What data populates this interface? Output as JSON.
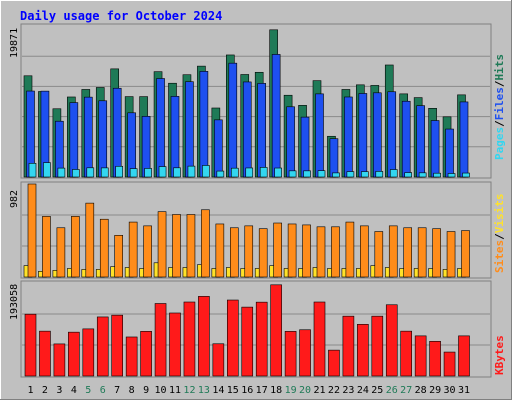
{
  "title": "Daily usage for October 2024",
  "colors": {
    "frame": "#c0c0c0",
    "title": "#0000ff",
    "hits": "#1f7a57",
    "files": "#1e50f0",
    "pages": "#33d6f0",
    "visits": "#ff8c1a",
    "sites": "#ffe22a",
    "kbytes": "#ff1a1a",
    "weekend_label": "#1f7a57",
    "weekday_label": "#000000"
  },
  "legend": {
    "pages": "Pages",
    "files": "Files",
    "hits": "Hits",
    "sites": "Sites",
    "visits": "Visits",
    "kbytes": "KBytes",
    "slash": "/"
  },
  "chart_data": [
    {
      "type": "bar",
      "panel": "hits-files-pages",
      "ymax_label": "19871",
      "ylim": [
        0,
        19871
      ],
      "categories": [
        "1",
        "2",
        "3",
        "4",
        "5",
        "6",
        "7",
        "8",
        "9",
        "10",
        "11",
        "12",
        "13",
        "14",
        "15",
        "16",
        "17",
        "18",
        "19",
        "20",
        "21",
        "22",
        "23",
        "24",
        "25",
        "26",
        "27",
        "28",
        "29",
        "30",
        "31"
      ],
      "weekend_days": [
        5,
        6,
        12,
        13,
        19,
        20,
        26,
        27
      ],
      "series": [
        {
          "name": "Hits",
          "values": [
            13320,
            11250,
            8980,
            10530,
            11520,
            11780,
            14230,
            10580,
            10580,
            13860,
            12340,
            13460,
            14590,
            9080,
            16060,
            13490,
            13780,
            19370,
            10760,
            9430,
            12680,
            5360,
            11520,
            12130,
            12050,
            14740,
            10940,
            10450,
            9040,
            7920,
            10810
          ]
        },
        {
          "name": "Files",
          "values": [
            11310,
            11300,
            7340,
            9790,
            10510,
            10030,
            11680,
            8450,
            7980,
            12960,
            10610,
            12540,
            13900,
            7520,
            14980,
            12510,
            12320,
            16130,
            9240,
            7880,
            10940,
            5040,
            10530,
            10990,
            11080,
            11220,
            9970,
            9390,
            7430,
            6310,
            9880
          ]
        },
        {
          "name": "Pages",
          "values": [
            1800,
            1890,
            1170,
            990,
            1210,
            1200,
            1410,
            1100,
            1130,
            1370,
            1210,
            1430,
            1520,
            780,
            1160,
            1190,
            1260,
            1180,
            810,
            810,
            830,
            540,
            710,
            710,
            740,
            980,
            580,
            550,
            500,
            460,
            520
          ]
        }
      ]
    },
    {
      "type": "bar",
      "panel": "visits-sites",
      "ymax_label": "982",
      "ylim": [
        0,
        982
      ],
      "categories": [
        "1",
        "2",
        "3",
        "4",
        "5",
        "6",
        "7",
        "8",
        "9",
        "10",
        "11",
        "12",
        "13",
        "14",
        "15",
        "16",
        "17",
        "18",
        "19",
        "20",
        "21",
        "22",
        "23",
        "24",
        "25",
        "26",
        "27",
        "28",
        "29",
        "30",
        "31"
      ],
      "series": [
        {
          "name": "Visits",
          "values": [
            982,
            640,
            520,
            640,
            780,
            610,
            440,
            580,
            540,
            690,
            660,
            660,
            710,
            560,
            520,
            540,
            510,
            570,
            560,
            550,
            530,
            530,
            580,
            540,
            480,
            540,
            520,
            520,
            510,
            480,
            490
          ]
        },
        {
          "name": "Sites",
          "values": [
            120,
            60,
            70,
            90,
            80,
            80,
            110,
            100,
            90,
            150,
            100,
            100,
            130,
            90,
            100,
            90,
            90,
            120,
            90,
            90,
            100,
            90,
            90,
            90,
            120,
            100,
            90,
            90,
            90,
            80,
            90
          ]
        }
      ]
    },
    {
      "type": "bar",
      "panel": "kbytes",
      "ymax_label": "193058",
      "ylim": [
        0,
        193058
      ],
      "categories": [
        "1",
        "2",
        "3",
        "4",
        "5",
        "6",
        "7",
        "8",
        "9",
        "10",
        "11",
        "12",
        "13",
        "14",
        "15",
        "16",
        "17",
        "18",
        "19",
        "20",
        "21",
        "22",
        "23",
        "24",
        "25",
        "26",
        "27",
        "28",
        "29",
        "30",
        "31"
      ],
      "series": [
        {
          "name": "KBytes",
          "values": [
            128300,
            93100,
            66600,
            91000,
            97800,
            122600,
            126300,
            81000,
            92700,
            150500,
            130800,
            153600,
            165300,
            66900,
            157700,
            143000,
            153300,
            189300,
            92700,
            96000,
            153600,
            53700,
            124200,
            107300,
            124200,
            147900,
            93100,
            83300,
            72000,
            49700,
            83300
          ]
        }
      ]
    }
  ],
  "x_labels": [
    "1",
    "2",
    "3",
    "4",
    "5",
    "6",
    "7",
    "8",
    "9",
    "10",
    "11",
    "12",
    "13",
    "14",
    "15",
    "16",
    "17",
    "18",
    "19",
    "20",
    "21",
    "22",
    "23",
    "24",
    "25",
    "26",
    "27",
    "28",
    "29",
    "30",
    "31"
  ]
}
